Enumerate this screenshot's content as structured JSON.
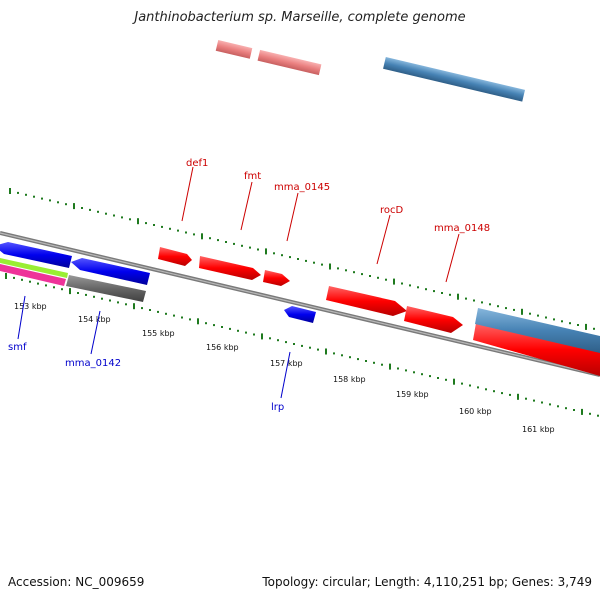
{
  "header": {
    "title": "Janthinobacterium sp. Marseille, complete genome"
  },
  "footer": {
    "accession": "Accession: NC_009659",
    "summary": "Topology: circular; Length: 4,110,251 bp; Genes: 3,749"
  },
  "colors": {
    "backbone": "#808080",
    "tick": "#1e7a1e",
    "forward_label": "#cc0000",
    "reverse_label": "#0000cc",
    "cds_forward": "#ff0000",
    "cds_reverse": "#0000ee",
    "rna_forward": "#ee8888",
    "rna_misc": "#4682b4",
    "misc_gray": "#666666",
    "misc_green": "#99ee33",
    "misc_magenta": "#ee3399"
  },
  "kbp_labels": [
    "153 kbp",
    "154 kbp",
    "155 kbp",
    "156 kbp",
    "157 kbp",
    "158 kbp",
    "159 kbp",
    "160 kbp",
    "161 kbp"
  ],
  "gene_labels": [
    {
      "text": "def1",
      "strand": "forward"
    },
    {
      "text": "fmt",
      "strand": "forward"
    },
    {
      "text": "mma_0145",
      "strand": "forward"
    },
    {
      "text": "rocD",
      "strand": "forward"
    },
    {
      "text": "mma_0148",
      "strand": "forward"
    },
    {
      "text": "smf",
      "strand": "reverse"
    },
    {
      "text": "mma_0142",
      "strand": "reverse"
    },
    {
      "text": "lrp",
      "strand": "reverse"
    }
  ]
}
